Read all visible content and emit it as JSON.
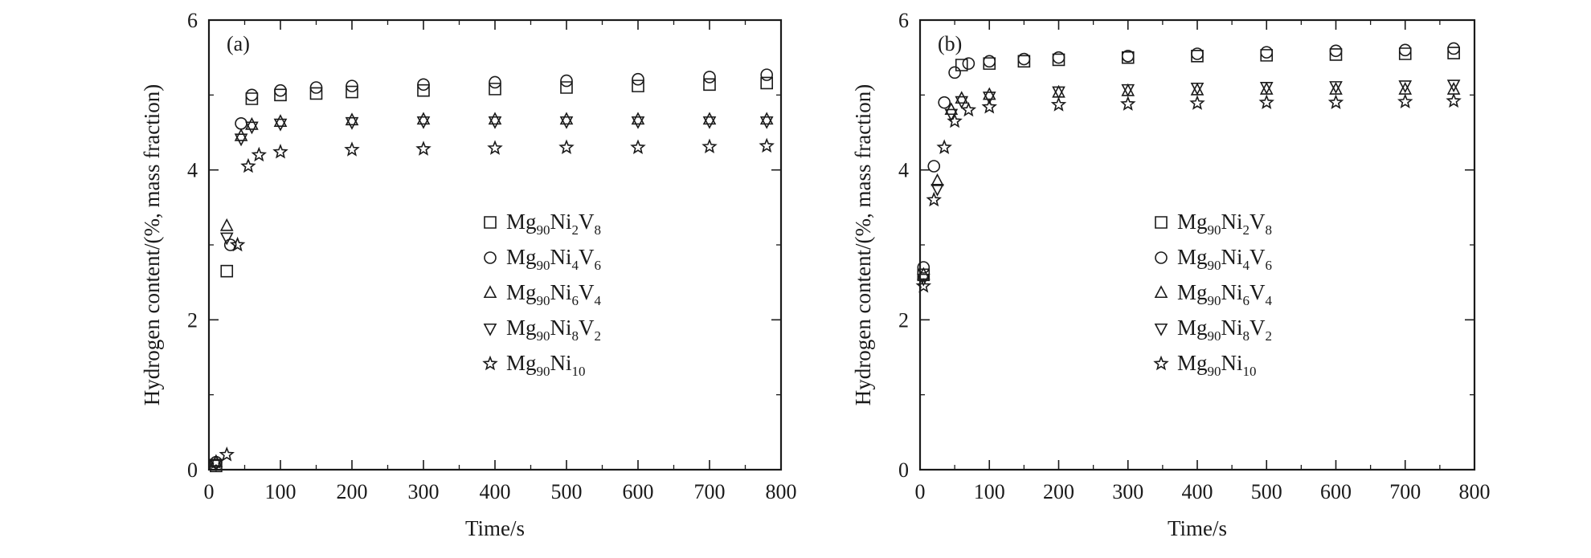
{
  "chart_data": [
    {
      "type": "scatter",
      "panel_label": "(a)",
      "xlabel": "Time/s",
      "ylabel": "Hydrogen content/(%, mass fraction)",
      "xlim": [
        0,
        800
      ],
      "ylim": [
        0,
        6
      ],
      "xticks": [
        0,
        100,
        200,
        300,
        400,
        500,
        600,
        700,
        800
      ],
      "yticks": [
        0,
        2,
        4,
        6
      ],
      "grid": false,
      "legend_position": "center-right",
      "series": [
        {
          "name": "Mg90Ni2V8",
          "legend": {
            "base": "Mg",
            "parts": [
              [
                "90",
                "Ni"
              ],
              [
                "2",
                "V"
              ],
              [
                "8",
                ""
              ]
            ]
          },
          "marker": "square",
          "x": [
            10,
            25,
            60,
            100,
            150,
            200,
            300,
            400,
            500,
            600,
            700,
            780
          ],
          "y": [
            0.05,
            2.65,
            4.95,
            5.0,
            5.02,
            5.04,
            5.06,
            5.08,
            5.1,
            5.12,
            5.14,
            5.16
          ]
        },
        {
          "name": "Mg90Ni4V6",
          "legend": {
            "base": "Mg",
            "parts": [
              [
                "90",
                "Ni"
              ],
              [
                "4",
                "V"
              ],
              [
                "6",
                ""
              ]
            ]
          },
          "marker": "circle",
          "x": [
            10,
            30,
            45,
            60,
            100,
            150,
            200,
            300,
            400,
            500,
            600,
            700,
            780
          ],
          "y": [
            0.1,
            3.0,
            4.62,
            5.0,
            5.06,
            5.1,
            5.12,
            5.14,
            5.17,
            5.19,
            5.21,
            5.24,
            5.27
          ]
        },
        {
          "name": "Mg90Ni6V4",
          "legend": {
            "base": "Mg",
            "parts": [
              [
                "90",
                "Ni"
              ],
              [
                "6",
                "V"
              ],
              [
                "4",
                ""
              ]
            ]
          },
          "marker": "triangle-up",
          "x": [
            10,
            25,
            45,
            60,
            100,
            200,
            300,
            400,
            500,
            600,
            700,
            780
          ],
          "y": [
            0.1,
            3.25,
            4.45,
            4.6,
            4.64,
            4.66,
            4.67,
            4.67,
            4.67,
            4.67,
            4.67,
            4.67
          ]
        },
        {
          "name": "Mg90Ni8V2",
          "legend": {
            "base": "Mg",
            "parts": [
              [
                "90",
                "Ni"
              ],
              [
                "8",
                "V"
              ],
              [
                "2",
                ""
              ]
            ]
          },
          "marker": "triangle-down",
          "x": [
            10,
            25,
            45,
            60,
            100,
            200,
            300,
            400,
            500,
            600,
            700,
            780
          ],
          "y": [
            0.08,
            3.1,
            4.42,
            4.58,
            4.62,
            4.64,
            4.65,
            4.65,
            4.65,
            4.65,
            4.65,
            4.65
          ]
        },
        {
          "name": "Mg90Ni10",
          "legend": {
            "base": "Mg",
            "parts": [
              [
                "90",
                "Ni"
              ],
              [
                "10",
                ""
              ]
            ]
          },
          "marker": "star",
          "x": [
            10,
            25,
            40,
            55,
            70,
            100,
            200,
            300,
            400,
            500,
            600,
            700,
            780
          ],
          "y": [
            0.1,
            0.2,
            3.0,
            4.05,
            4.2,
            4.24,
            4.27,
            4.28,
            4.29,
            4.3,
            4.3,
            4.31,
            4.32
          ]
        }
      ]
    },
    {
      "type": "scatter",
      "panel_label": "(b)",
      "xlabel": "Time/s",
      "ylabel": "Hydrogen content/(%, mass fraction)",
      "xlim": [
        0,
        800
      ],
      "ylim": [
        0,
        6
      ],
      "xticks": [
        0,
        100,
        200,
        300,
        400,
        500,
        600,
        700,
        800
      ],
      "yticks": [
        0,
        2,
        4,
        6
      ],
      "grid": false,
      "legend_position": "center-right",
      "series": [
        {
          "name": "Mg90Ni2V8",
          "legend": {
            "base": "Mg",
            "parts": [
              [
                "90",
                "Ni"
              ],
              [
                "2",
                "V"
              ],
              [
                "8",
                ""
              ]
            ]
          },
          "marker": "square",
          "x": [
            5,
            60,
            100,
            150,
            200,
            300,
            400,
            500,
            600,
            700,
            770
          ],
          "y": [
            2.6,
            5.4,
            5.42,
            5.45,
            5.47,
            5.5,
            5.52,
            5.53,
            5.54,
            5.55,
            5.56
          ]
        },
        {
          "name": "Mg90Ni4V6",
          "legend": {
            "base": "Mg",
            "parts": [
              [
                "90",
                "Ni"
              ],
              [
                "4",
                "V"
              ],
              [
                "6",
                ""
              ]
            ]
          },
          "marker": "circle",
          "x": [
            5,
            20,
            35,
            50,
            70,
            100,
            150,
            200,
            300,
            400,
            500,
            600,
            700,
            770
          ],
          "y": [
            2.7,
            4.05,
            4.9,
            5.3,
            5.42,
            5.45,
            5.48,
            5.5,
            5.52,
            5.55,
            5.57,
            5.59,
            5.6,
            5.62
          ]
        },
        {
          "name": "Mg90Ni6V4",
          "legend": {
            "base": "Mg",
            "parts": [
              [
                "90",
                "Ni"
              ],
              [
                "6",
                "V"
              ],
              [
                "4",
                ""
              ]
            ]
          },
          "marker": "triangle-up",
          "x": [
            5,
            25,
            45,
            60,
            100,
            200,
            300,
            400,
            500,
            600,
            700,
            770
          ],
          "y": [
            2.6,
            3.85,
            4.8,
            4.95,
            5.0,
            5.03,
            5.05,
            5.06,
            5.07,
            5.07,
            5.07,
            5.07
          ]
        },
        {
          "name": "Mg90Ni8V2",
          "legend": {
            "base": "Mg",
            "parts": [
              [
                "90",
                "Ni"
              ],
              [
                "8",
                "V"
              ],
              [
                "2",
                ""
              ]
            ]
          },
          "marker": "triangle-down",
          "x": [
            5,
            25,
            45,
            60,
            100,
            200,
            300,
            400,
            500,
            600,
            700,
            770
          ],
          "y": [
            2.55,
            3.75,
            4.75,
            4.92,
            4.98,
            5.05,
            5.08,
            5.1,
            5.11,
            5.12,
            5.13,
            5.14
          ]
        },
        {
          "name": "Mg90Ni10",
          "legend": {
            "base": "Mg",
            "parts": [
              [
                "90",
                "Ni"
              ],
              [
                "10",
                ""
              ]
            ]
          },
          "marker": "star",
          "x": [
            5,
            20,
            35,
            50,
            70,
            100,
            200,
            300,
            400,
            500,
            600,
            700,
            770
          ],
          "y": [
            2.45,
            3.6,
            4.3,
            4.65,
            4.8,
            4.84,
            4.87,
            4.88,
            4.89,
            4.9,
            4.9,
            4.91,
            4.92
          ]
        }
      ]
    }
  ]
}
